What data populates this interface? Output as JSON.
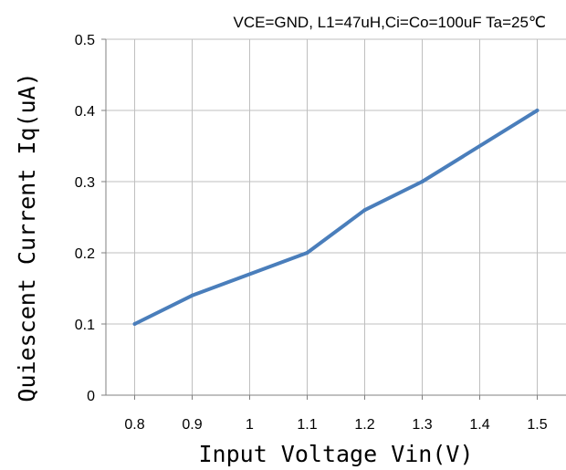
{
  "chart_data": {
    "type": "line",
    "title": "VCE=GND, L1=47uH,Ci=Co=100uF Ta=25℃",
    "xlabel": "Input Voltage Vin(V)",
    "ylabel": "Quiescent Current Iq(uA)",
    "x_ticks": [
      "0.8",
      "0.9",
      "1",
      "1.1",
      "1.2",
      "1.3",
      "1.4",
      "1.5"
    ],
    "y_ticks": [
      "0",
      "0.1",
      "0.2",
      "0.3",
      "0.4",
      "0.5"
    ],
    "xlim": [
      0.75,
      1.55
    ],
    "ylim": [
      0,
      0.5
    ],
    "grid": true,
    "series": [
      {
        "color": "#4a7ebb",
        "x": [
          0.8,
          0.9,
          1.1,
          1.2,
          1.3,
          1.5
        ],
        "y": [
          0.1,
          0.14,
          0.2,
          0.26,
          0.3,
          0.4
        ]
      }
    ]
  }
}
